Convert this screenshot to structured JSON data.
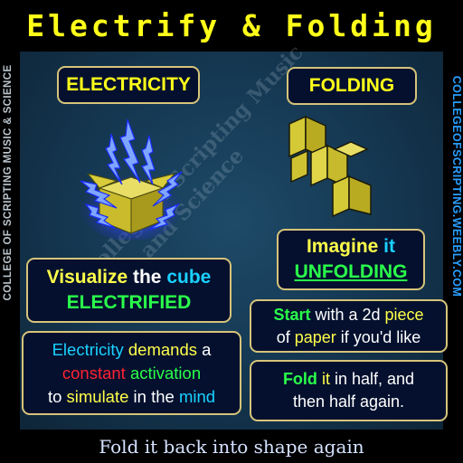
{
  "title": "Electrify & Folding",
  "side_text_left": "COLLEGE OF SCRIPTING MUSIC & SCIENCE",
  "side_text_right": "COLLEGEOFSCRIPTING.WEEBLY.COM",
  "watermark": [
    "College of Scripting Music",
    "and Science"
  ],
  "electricity_header": "ELECTRICITY",
  "folding_header": "FOLDING",
  "visualize": {
    "w1": "Visualize",
    "w2": "the",
    "w3": "cube",
    "w4": "ELECTRIFIED"
  },
  "imagine": {
    "w1": "Imagine",
    "w2": "it",
    "w3": "UNFOLDING"
  },
  "electricity_demands": {
    "w1": "Electricity",
    "w2": "demands",
    "w3": "a",
    "w4": "constant",
    "w5": "activation",
    "w6": "to",
    "w7": "simulate",
    "w8": "in the",
    "w9": "mind"
  },
  "start": {
    "w1": "Start",
    "w2": "with a 2d",
    "w3": "piece",
    "w4": "of",
    "w5": "paper",
    "w6": "if you'd like"
  },
  "fold": {
    "w1": "Fold",
    "w2": "it",
    "w3": "in half, and",
    "w4": "then half again."
  },
  "footer": "Fold it back into shape again",
  "colors": {
    "title_yellow": "#ffff1a",
    "panel_blue": "#163a55",
    "box_border": "#d6c47a",
    "cube_yellow": "#d8cc3a",
    "bolt_blue": "#3a6cff"
  },
  "icons": [
    "electrified-cube-icon",
    "folded-paper-icon"
  ]
}
